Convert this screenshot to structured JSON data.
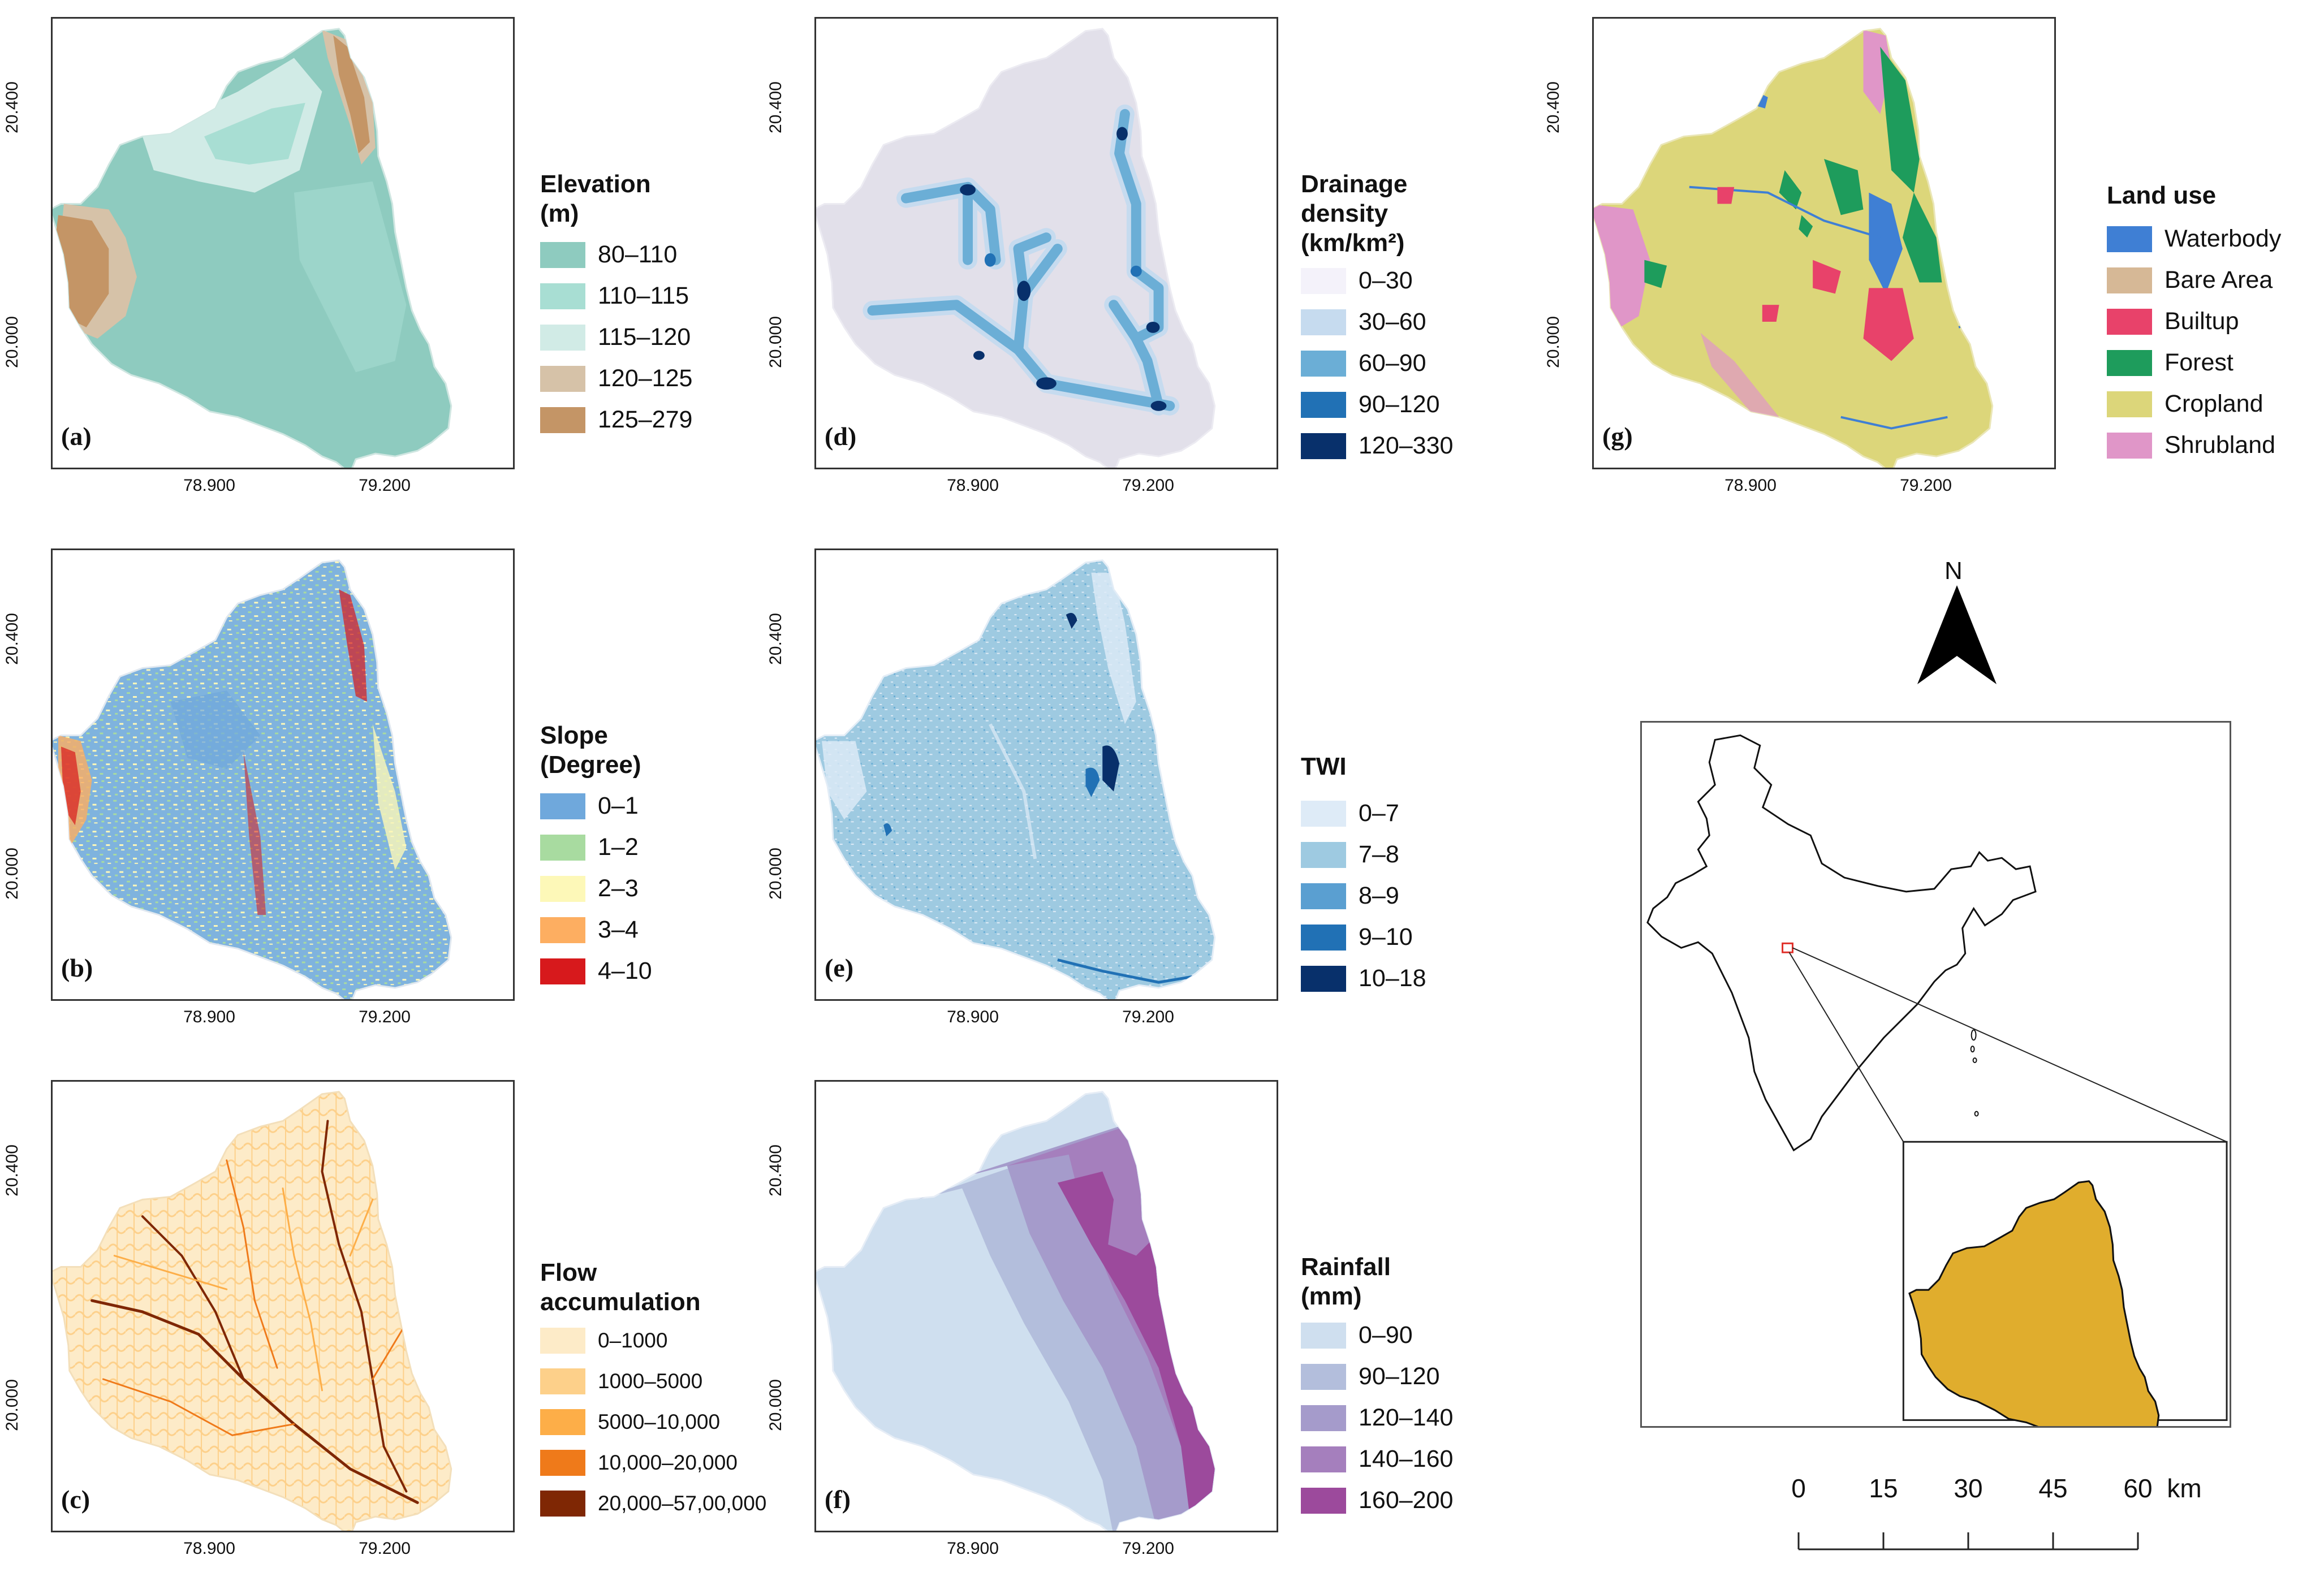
{
  "axes": {
    "x_ticks": [
      "78.900",
      "79.200"
    ],
    "y_ticks": [
      "20.400",
      "20.000"
    ]
  },
  "panels": [
    {
      "id": "a",
      "label": "(a)",
      "legend_title": [
        "Elevation",
        "(m)"
      ],
      "items": [
        {
          "text": "80–110",
          "color": "#8ecbbf"
        },
        {
          "text": "110–115",
          "color": "#a8ded3"
        },
        {
          "text": "115–120",
          "color": "#d1ebe6"
        },
        {
          "text": "120–125",
          "color": "#d6c2a8"
        },
        {
          "text": "125–279",
          "color": "#c49566"
        }
      ]
    },
    {
      "id": "b",
      "label": "(b)",
      "legend_title": [
        "Slope",
        "(Degree)"
      ],
      "items": [
        {
          "text": "0–1",
          "color": "#6fa8dc"
        },
        {
          "text": "1–2",
          "color": "#a8dba0"
        },
        {
          "text": "2–3",
          "color": "#fdf8b8"
        },
        {
          "text": "3–4",
          "color": "#fdae61"
        },
        {
          "text": "4–10",
          "color": "#d7191c"
        }
      ]
    },
    {
      "id": "c",
      "label": "(c)",
      "legend_title": [
        "Flow",
        "accumulation"
      ],
      "items": [
        {
          "text": "0–1000",
          "color": "#fdebc8"
        },
        {
          "text": "1000–5000",
          "color": "#fdd08a"
        },
        {
          "text": "5000–10,000",
          "color": "#fdae48"
        },
        {
          "text": "10,000–20,000",
          "color": "#ef7a1a"
        },
        {
          "text": "20,000–57,00,000",
          "color": "#7f2704"
        }
      ]
    },
    {
      "id": "d",
      "label": "(d)",
      "legend_title": [
        "Drainage",
        "density",
        "(km/km²)"
      ],
      "items": [
        {
          "text": "0–30",
          "color": "#f4f2fa"
        },
        {
          "text": "30–60",
          "color": "#c6dbef"
        },
        {
          "text": "60–90",
          "color": "#6baed6"
        },
        {
          "text": "90–120",
          "color": "#2171b5"
        },
        {
          "text": "120–330",
          "color": "#08306b"
        }
      ]
    },
    {
      "id": "e",
      "label": "(e)",
      "legend_title": [
        "TWI"
      ],
      "items": [
        {
          "text": "0–7",
          "color": "#deebf7"
        },
        {
          "text": "7–8",
          "color": "#9ecae1"
        },
        {
          "text": "8–9",
          "color": "#5a9fd1"
        },
        {
          "text": "9–10",
          "color": "#2171b5"
        },
        {
          "text": "10–18",
          "color": "#08306b"
        }
      ]
    },
    {
      "id": "f",
      "label": "(f)",
      "legend_title": [
        "Rainfall",
        "(mm)"
      ],
      "items": [
        {
          "text": "0–90",
          "color": "#cfdfef"
        },
        {
          "text": "90–120",
          "color": "#b3bedc"
        },
        {
          "text": "120–140",
          "color": "#a59bcb"
        },
        {
          "text": "140–160",
          "color": "#a57fbd"
        },
        {
          "text": "160–200",
          "color": "#9c4a9c"
        }
      ]
    },
    {
      "id": "g",
      "label": "(g)",
      "legend_title": [
        "Land use"
      ],
      "items": [
        {
          "text": "Waterbody",
          "color": "#3f7fd4"
        },
        {
          "text": "Bare Area",
          "color": "#d6b896"
        },
        {
          "text": "Builtup",
          "color": "#e8426a"
        },
        {
          "text": "Forest",
          "color": "#1e9c5c"
        },
        {
          "text": "Cropland",
          "color": "#dcd67a"
        },
        {
          "text": "Shrubland",
          "color": "#e096c8"
        }
      ]
    }
  ],
  "north_label": "N",
  "scale_bar": {
    "labels": [
      "0",
      "15",
      "30",
      "45",
      "60"
    ],
    "unit": "km"
  },
  "colors": {
    "study_area": "#e0ad2d",
    "locator_box": "#e0302a"
  }
}
